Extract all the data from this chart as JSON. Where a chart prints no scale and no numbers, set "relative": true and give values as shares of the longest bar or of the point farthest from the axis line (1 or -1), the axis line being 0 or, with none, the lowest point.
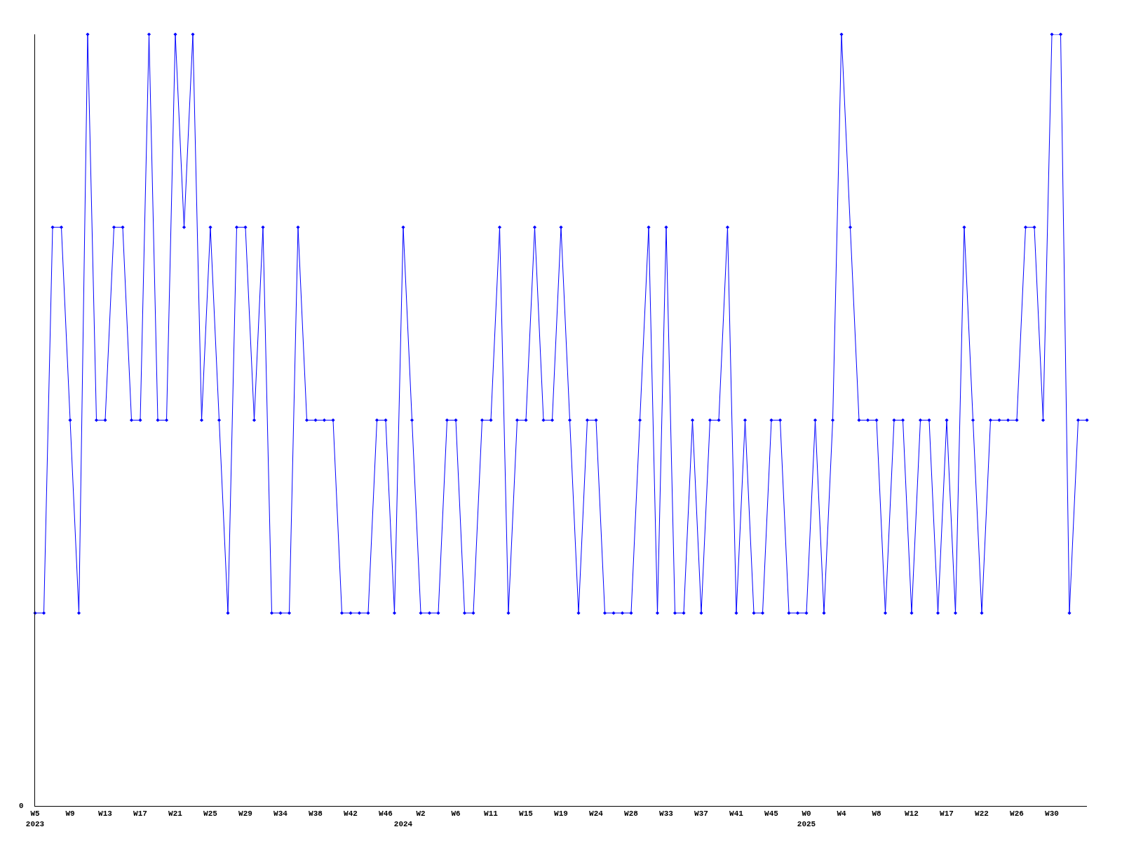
{
  "chart_data": {
    "type": "line",
    "relative": true,
    "color": "#0000ff",
    "marker": "diamond",
    "line_style": "solid",
    "categories": [
      "W5\n2023",
      null,
      null,
      null,
      "W9",
      null,
      null,
      null,
      "W13",
      null,
      null,
      null,
      "W17",
      null,
      null,
      null,
      "W21",
      null,
      null,
      null,
      "W25",
      null,
      null,
      null,
      "W29",
      null,
      null,
      null,
      "W34",
      null,
      null,
      null,
      "W38",
      null,
      null,
      null,
      "W42",
      null,
      null,
      null,
      "W46",
      null,
      "\n2024",
      null,
      "W2",
      null,
      null,
      null,
      "W6",
      null,
      null,
      null,
      "W11",
      null,
      null,
      null,
      "W15",
      null,
      null,
      null,
      "W19",
      null,
      null,
      null,
      "W24",
      null,
      null,
      null,
      "W28",
      null,
      null,
      null,
      "W33",
      null,
      null,
      null,
      "W37",
      null,
      null,
      null,
      "W41",
      null,
      null,
      null,
      "W45",
      null,
      null,
      null,
      "W0\n2025",
      null,
      null,
      null,
      "W4",
      null,
      null,
      null,
      "W8",
      null,
      null,
      null,
      "W12",
      null,
      null,
      null,
      "W17",
      null,
      null,
      null,
      "W22",
      null,
      null,
      null,
      "W26",
      null,
      null,
      null,
      "W30",
      null,
      null,
      null,
      null
    ],
    "values": [
      0.25,
      0.25,
      0.75,
      0.75,
      0.5,
      0.25,
      1,
      0.5,
      0.5,
      0.75,
      0.75,
      0.5,
      0.5,
      1,
      0.5,
      0.5,
      1,
      0.75,
      1,
      0.5,
      0.75,
      0.5,
      0.25,
      0.75,
      0.75,
      0.5,
      0.75,
      0.25,
      0.25,
      0.25,
      0.75,
      0.5,
      0.5,
      0.5,
      0.5,
      0.25,
      0.25,
      0.25,
      0.25,
      0.5,
      0.5,
      0.25,
      0.75,
      0.5,
      0.25,
      0.25,
      0.25,
      0.5,
      0.5,
      0.25,
      0.25,
      0.5,
      0.5,
      0.75,
      0.25,
      0.5,
      0.5,
      0.75,
      0.5,
      0.5,
      0.75,
      0.5,
      0.25,
      0.5,
      0.5,
      0.25,
      0.25,
      0.25,
      0.25,
      0.5,
      0.75,
      0.25,
      0.75,
      0.25,
      0.25,
      0.5,
      0.25,
      0.5,
      0.5,
      0.75,
      0.25,
      0.5,
      0.25,
      0.25,
      0.5,
      0.5,
      0.25,
      0.25,
      0.25,
      0.5,
      0.25,
      0.5,
      1,
      0.75,
      0.5,
      0.5,
      0.5,
      0.25,
      0.5,
      0.5,
      0.25,
      0.5,
      0.5,
      0.25,
      0.5,
      0.25,
      0.75,
      0.5,
      0.25,
      0.5,
      0.5,
      0.5,
      0.5,
      0.75,
      0.75,
      0.5,
      1,
      1,
      0.25,
      0.5,
      0.5
    ],
    "annotations": [
      "0"
    ]
  }
}
